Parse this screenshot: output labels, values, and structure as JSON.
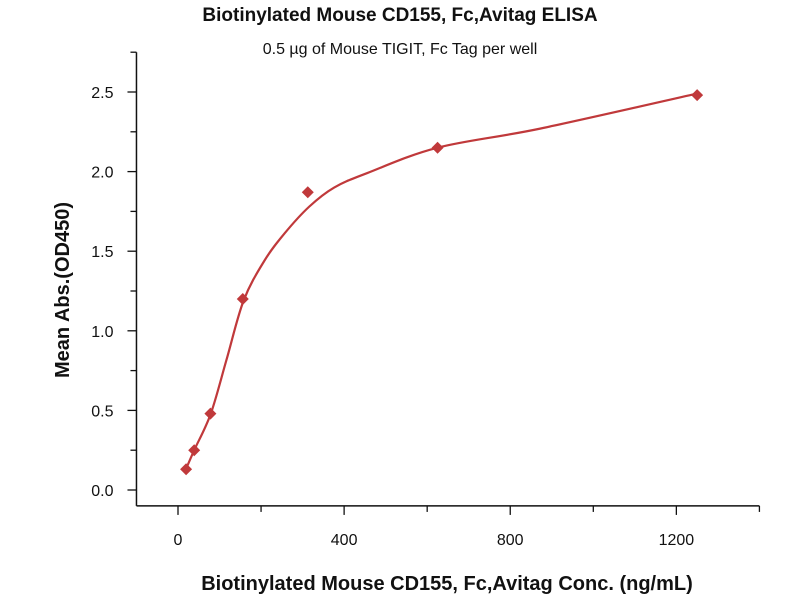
{
  "chart_data": {
    "type": "scatter",
    "title": "Biotinylated Mouse CD155, Fc,Avitag ELISA",
    "subtitle": "0.5 µg of Mouse TIGIT, Fc Tag per well",
    "xlabel": "Biotinylated Mouse CD155, Fc,Avitag Conc. (ng/mL)",
    "ylabel": "Mean Abs.(OD450)",
    "xlim": [
      -100,
      1400
    ],
    "ylim": [
      -0.1,
      2.75
    ],
    "xticks": [
      0,
      400,
      800,
      1200
    ],
    "xticks_minor": [
      200,
      600,
      1000,
      1400
    ],
    "yticks": [
      "0.0",
      "0.5",
      "1.0",
      "1.5",
      "2.0",
      "2.5"
    ],
    "yticks_minor": [
      0.25,
      0.75,
      1.25,
      1.75,
      2.25,
      2.75
    ],
    "grid": false,
    "color": "#c0393b",
    "series": [
      {
        "name": "data",
        "x": [
          19.5,
          39,
          78,
          156,
          312.5,
          625,
          1250
        ],
        "y": [
          0.13,
          0.25,
          0.48,
          1.2,
          1.87,
          2.15,
          2.48
        ]
      }
    ],
    "fit_curve": {
      "x": [
        19,
        39,
        79,
        117,
        158,
        208,
        256,
        316,
        376,
        455,
        625,
        872,
        1250
      ],
      "y": [
        0.13,
        0.25,
        0.48,
        0.82,
        1.19,
        1.44,
        1.61,
        1.78,
        1.9,
        1.99,
        2.15,
        2.27,
        2.49
      ]
    }
  }
}
